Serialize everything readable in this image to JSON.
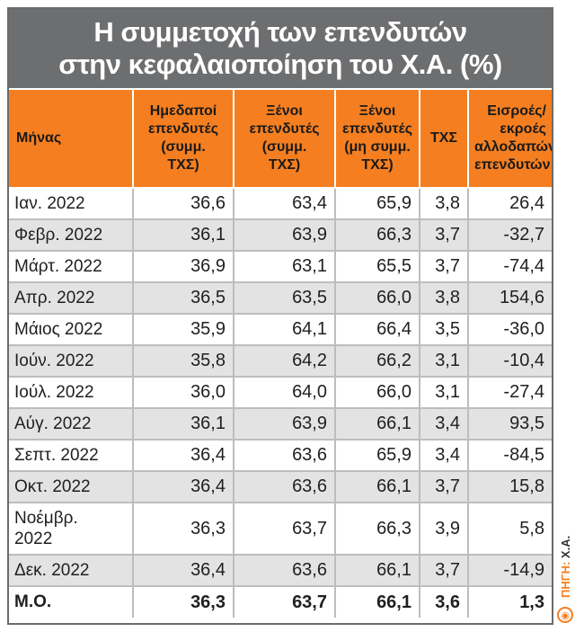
{
  "chart_data": {
    "type": "table",
    "title": [
      "Η συμμετοχή των επενδυτών",
      "στην κεφαλαιοποίηση του Χ.Α. (%)"
    ],
    "columns": [
      [
        "Μήνας"
      ],
      [
        "Ημεδαποί",
        "επενδυτές",
        "(συμμ.",
        "ΤΧΣ)"
      ],
      [
        "Ξένοι",
        "επενδυτές",
        "(συμμ.",
        "ΤΧΣ)"
      ],
      [
        "Ξένοι",
        "επενδυτές",
        "(μη συμμ.",
        "ΤΧΣ)"
      ],
      [
        "ΤΧΣ"
      ],
      [
        "Εισροές/",
        "εκροές",
        "αλλοδαπών",
        "επενδυτών"
      ]
    ],
    "rows": [
      [
        "Ιαν. 2022",
        "36,6",
        "63,4",
        "65,9",
        "3,8",
        "26,4"
      ],
      [
        "Φεβρ. 2022",
        "36,1",
        "63,9",
        "66,3",
        "3,7",
        "-32,7"
      ],
      [
        "Μάρτ. 2022",
        "36,9",
        "63,1",
        "65,5",
        "3,7",
        "-74,4"
      ],
      [
        "Απρ. 2022",
        "36,5",
        "63,5",
        "66,0",
        "3,8",
        "154,6"
      ],
      [
        "Μάιος 2022",
        "35,9",
        "64,1",
        "66,4",
        "3,5",
        "-36,0"
      ],
      [
        "Ιούν. 2022",
        "35,8",
        "64,2",
        "66,2",
        "3,1",
        "-10,4"
      ],
      [
        "Ιούλ. 2022",
        "36,0",
        "64,0",
        "66,0",
        "3,1",
        "-27,4"
      ],
      [
        "Αύγ. 2022",
        "36,1",
        "63,9",
        "66,1",
        "3,4",
        "93,5"
      ],
      [
        "Σεπτ. 2022",
        "36,4",
        "63,6",
        "65,9",
        "3,4",
        "-84,5"
      ],
      [
        "Οκτ. 2022",
        "36,4",
        "63,6",
        "66,1",
        "3,7",
        "15,8"
      ],
      [
        "Νοέμβρ. 2022",
        "36,3",
        "63,7",
        "66,3",
        "3,9",
        "5,8"
      ],
      [
        "Δεκ. 2022",
        "36,4",
        "63,6",
        "66,1",
        "3,7",
        "-14,9"
      ]
    ],
    "average_row": [
      "Μ.Ο.",
      "36,3",
      "63,7",
      "66,1",
      "3,6",
      "1,3"
    ]
  },
  "source": {
    "label": "ΠΗΓΗ:",
    "value": "Χ.Α."
  },
  "colors": {
    "title_bg": "#6d6e70",
    "header_bg": "#f57f20",
    "row_alt_bg": "#e3e3e3",
    "text": "#1f1f1f"
  },
  "icons": {
    "logo": "publisher-logo-icon"
  }
}
